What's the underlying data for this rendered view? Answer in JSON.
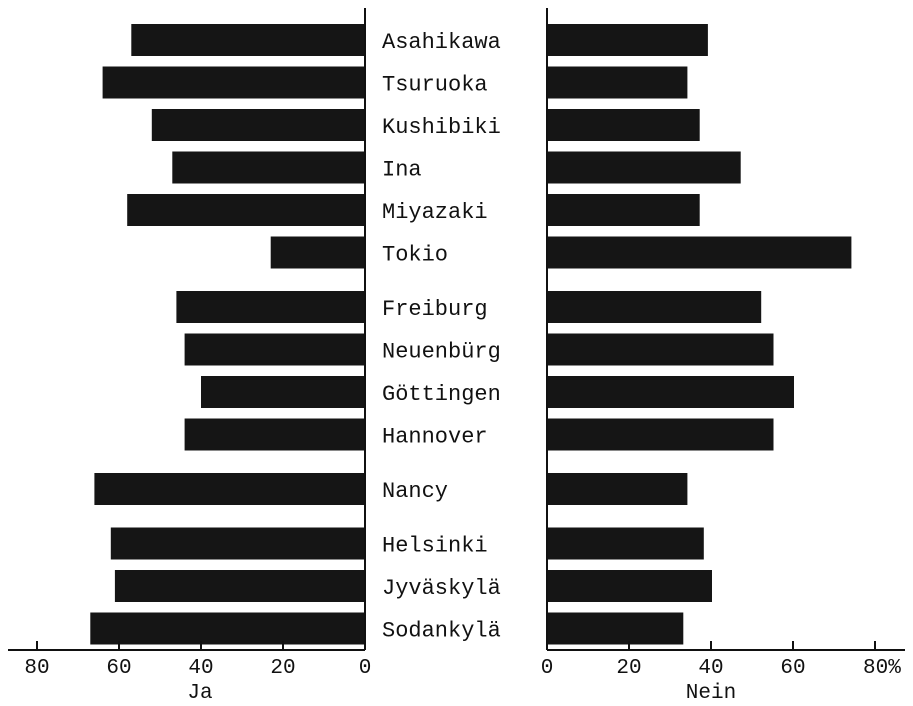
{
  "chart_data": {
    "type": "bar",
    "orientation": "horizontal",
    "layout": "back-to-back",
    "categories": [
      "Asahikawa",
      "Tsuruoka",
      "Kushibiki",
      "Ina",
      "Miyazaki",
      "Tokio",
      "Freiburg",
      "Neuenbürg",
      "Göttingen",
      "Hannover",
      "Nancy",
      "Helsinki",
      "Jyväskylä",
      "Sodankylä"
    ],
    "groups": [
      6,
      4,
      1,
      3
    ],
    "series": [
      {
        "name": "Ja",
        "side": "left",
        "values": [
          57,
          64,
          52,
          47,
          58,
          23,
          46,
          44,
          40,
          44,
          66,
          62,
          61,
          67
        ]
      },
      {
        "name": "Nein",
        "side": "right",
        "values": [
          39,
          34,
          37,
          47,
          37,
          74,
          52,
          55,
          60,
          55,
          34,
          38,
          40,
          33
        ]
      }
    ],
    "left_axis": {
      "label": "Ja",
      "ticks": [
        "80",
        "60",
        "40",
        "20",
        "0"
      ],
      "range": [
        80,
        0
      ]
    },
    "right_axis": {
      "label": "Nein",
      "ticks": [
        "0",
        "20",
        "40",
        "60",
        "80%"
      ],
      "range": [
        0,
        80
      ]
    },
    "bar_color": "#151515"
  }
}
